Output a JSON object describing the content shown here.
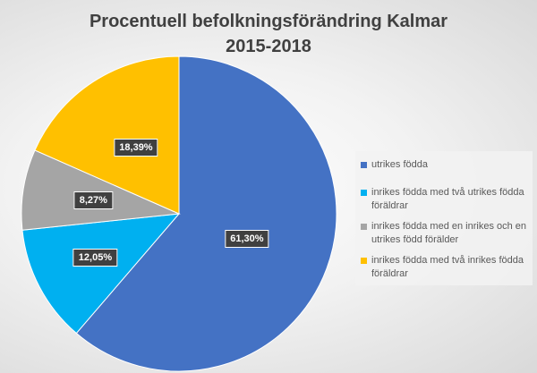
{
  "chart_data": {
    "type": "pie",
    "title_line1": "Procentuell befolkningsförändring Kalmar",
    "title_line2": "2015-2018",
    "start_angle": "12 o'clock, clockwise",
    "legend_position": "right",
    "slices": [
      {
        "name": "utrikes födda",
        "value": 61.3,
        "label": "61,30%",
        "color": "#4472C4"
      },
      {
        "name": "inrikes födda med två utrikes födda föräldrar",
        "value": 12.05,
        "label": "12,05%",
        "color": "#00B0F0"
      },
      {
        "name": "inrikes födda med en inrikes och en utrikes född förälder",
        "value": 8.27,
        "label": "8,27%",
        "color": "#A5A5A5"
      },
      {
        "name": "inrikes födda med två inrikes födda föräldrar",
        "value": 18.39,
        "label": "18,39%",
        "color": "#FFC000"
      }
    ]
  }
}
